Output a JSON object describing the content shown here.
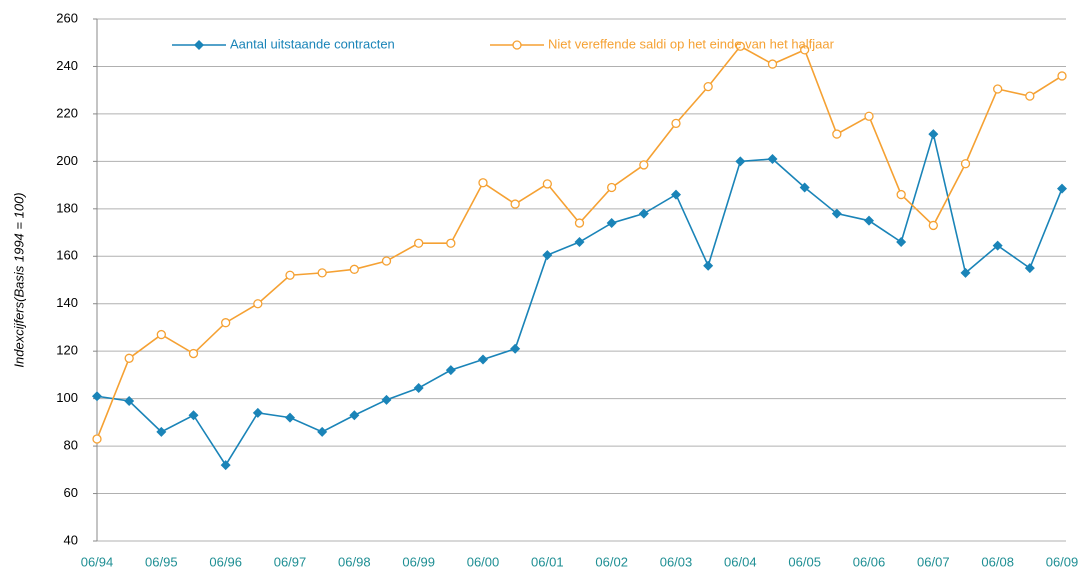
{
  "chart_data": {
    "type": "line",
    "y_label": "Indexcijfers(Basis 1994 = 100)",
    "categories": [
      "06/94",
      null,
      "06/95",
      null,
      "06/96",
      null,
      "06/97",
      null,
      "06/98",
      null,
      "06/99",
      null,
      "06/00",
      null,
      "06/01",
      null,
      "06/02",
      null,
      "06/03",
      null,
      "06/04",
      null,
      "06/05",
      null,
      "06/06",
      null,
      "06/07",
      null,
      "06/08",
      null,
      "06/09"
    ],
    "series": [
      {
        "name": "Aantal uitstaande contracten",
        "color": "#1a84b8",
        "marker": "diamond",
        "values": [
          101,
          99,
          86,
          93,
          72,
          94,
          92,
          86,
          93,
          99.5,
          104.5,
          112,
          116.5,
          121,
          160.5,
          166,
          174,
          178,
          186,
          156,
          200,
          201,
          189,
          178,
          175,
          166,
          211.5,
          153,
          164.5,
          155,
          188.5
        ]
      },
      {
        "name": "Niet vereffende saldi op het einde van het halfjaar",
        "color": "#f5a133",
        "marker": "circle",
        "values": [
          83,
          117,
          127,
          119,
          132,
          140,
          152,
          153,
          154.5,
          158,
          165.5,
          165.5,
          191,
          182,
          190.5,
          174,
          189,
          198.5,
          216,
          231.5,
          248.5,
          241,
          247,
          211.5,
          219,
          186,
          173,
          199,
          230.5,
          227.5,
          236
        ]
      }
    ],
    "ylim": [
      40,
      260
    ],
    "yticks": [
      40,
      60,
      80,
      100,
      120,
      140,
      160,
      180,
      200,
      220,
      240,
      260
    ],
    "grid": true,
    "legend": "top"
  }
}
